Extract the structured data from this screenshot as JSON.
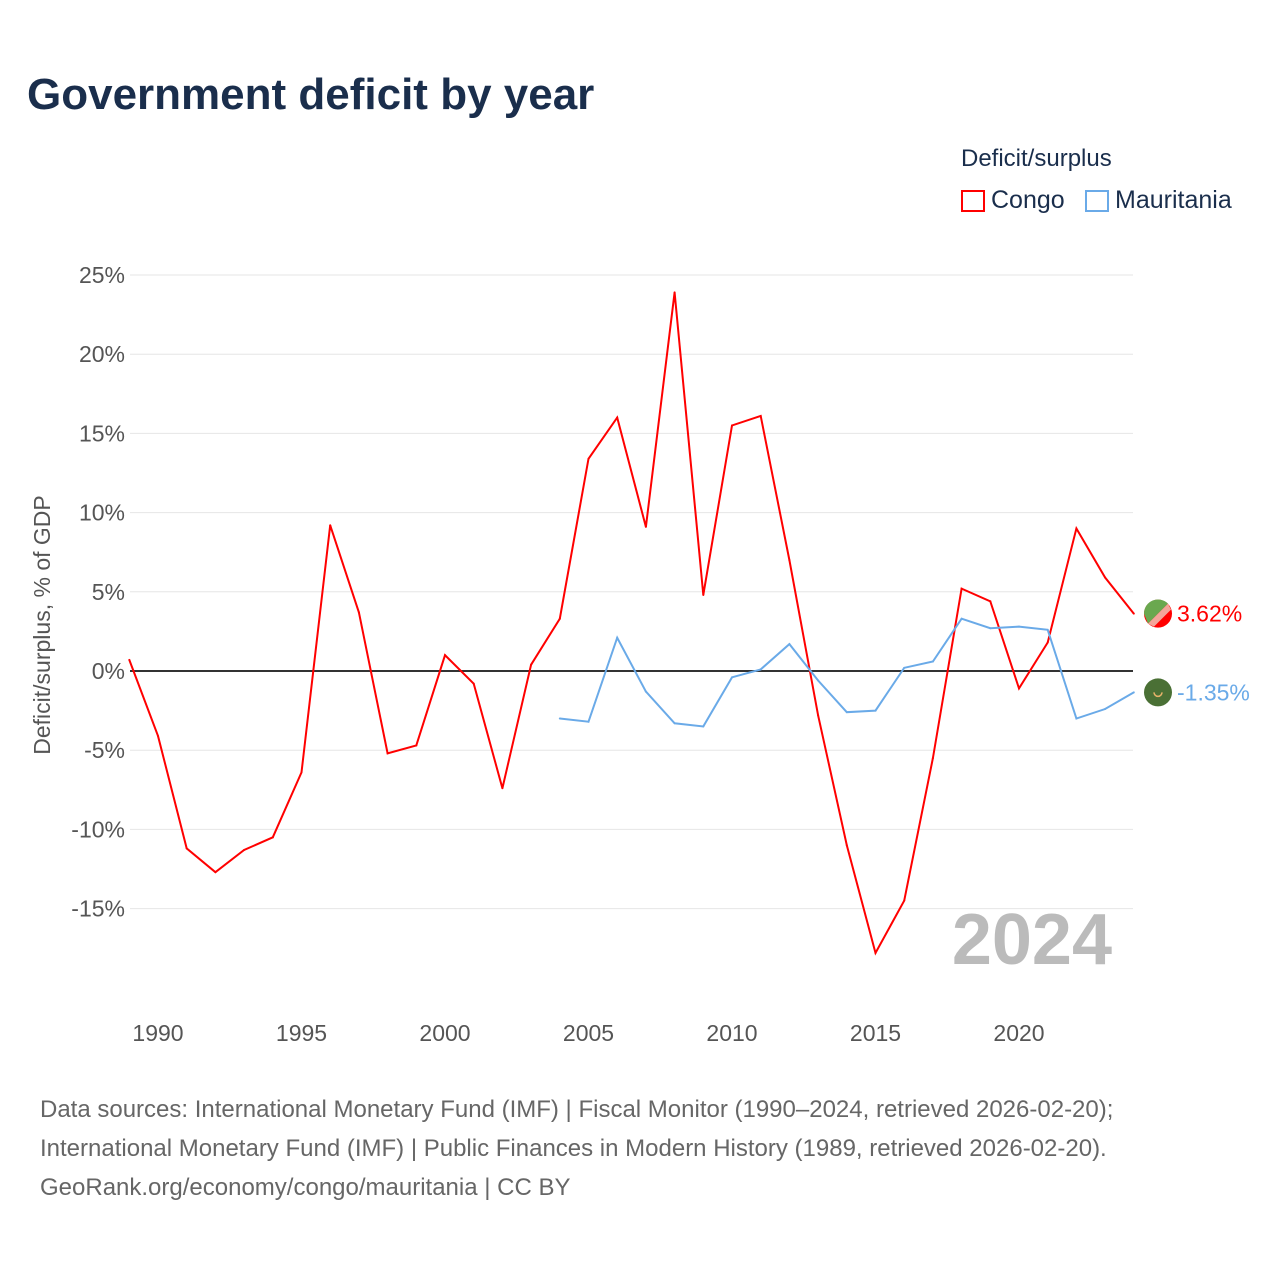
{
  "title": "Government deficit by year",
  "legend": {
    "title": "Deficit/surplus",
    "items": [
      {
        "label": "Congo",
        "color": "#ff0000"
      },
      {
        "label": "Mauritania",
        "color": "#6aaae8"
      }
    ]
  },
  "sources": [
    "Data sources: International Monetary Fund (IMF) | Fiscal Monitor (1990–2024, retrieved 2026-02-20);",
    "International Monetary Fund (IMF) | Public Finances in Modern History (1989, retrieved 2026-02-20).",
    "GeoRank.org/economy/congo/mauritania | CC BY"
  ],
  "chart_data": {
    "type": "line",
    "ylabel": "Deficit/surplus, % of GDP",
    "ylim": [
      -20,
      25
    ],
    "xlim": [
      1989,
      2024
    ],
    "yticks": [
      25,
      20,
      15,
      10,
      5,
      0,
      -5,
      -10,
      -15
    ],
    "ytick_labels": [
      "25%",
      "20%",
      "15%",
      "10%",
      "5%",
      "0%",
      "-5%",
      "-10%",
      "-15%"
    ],
    "xticks": [
      1990,
      1995,
      2000,
      2005,
      2010,
      2015,
      2020
    ],
    "xtick_labels": [
      "1990",
      "1995",
      "2000",
      "2005",
      "2010",
      "2015",
      "2020"
    ],
    "year_label": "2024",
    "series": [
      {
        "name": "Congo",
        "color": "#ff0000",
        "end_label": "3.62%",
        "x": [
          1989,
          1990,
          1991,
          1992,
          1993,
          1994,
          1995,
          1996,
          1997,
          1998,
          1999,
          2000,
          2001,
          2002,
          2003,
          2004,
          2005,
          2006,
          2007,
          2008,
          2009,
          2010,
          2011,
          2012,
          2013,
          2014,
          2015,
          2016,
          2017,
          2018,
          2019,
          2020,
          2021,
          2022,
          2023,
          2024
        ],
        "values": [
          0.7,
          -4.1,
          -11.2,
          -12.7,
          -11.3,
          -10.5,
          -6.4,
          9.2,
          3.7,
          -5.2,
          -4.7,
          1.0,
          -0.8,
          -7.4,
          0.4,
          3.3,
          13.4,
          16.0,
          9.1,
          23.9,
          4.8,
          15.5,
          16.1,
          7.0,
          -2.8,
          -11.0,
          -17.8,
          -14.5,
          -5.5,
          5.2,
          4.4,
          -1.1,
          1.8,
          9.0,
          5.9,
          3.62
        ]
      },
      {
        "name": "Mauritania",
        "color": "#6aaae8",
        "end_label": "-1.35%",
        "x": [
          2004,
          2005,
          2006,
          2007,
          2008,
          2009,
          2010,
          2011,
          2012,
          2013,
          2014,
          2015,
          2016,
          2017,
          2018,
          2019,
          2020,
          2021,
          2022,
          2023,
          2024
        ],
        "values": [
          -3.0,
          -3.2,
          2.1,
          -1.3,
          -3.3,
          -3.5,
          -0.4,
          0.1,
          1.7,
          -0.6,
          -2.6,
          -2.5,
          0.2,
          0.6,
          3.3,
          2.7,
          2.8,
          2.6,
          -3.0,
          -2.4,
          -1.35
        ]
      }
    ]
  }
}
